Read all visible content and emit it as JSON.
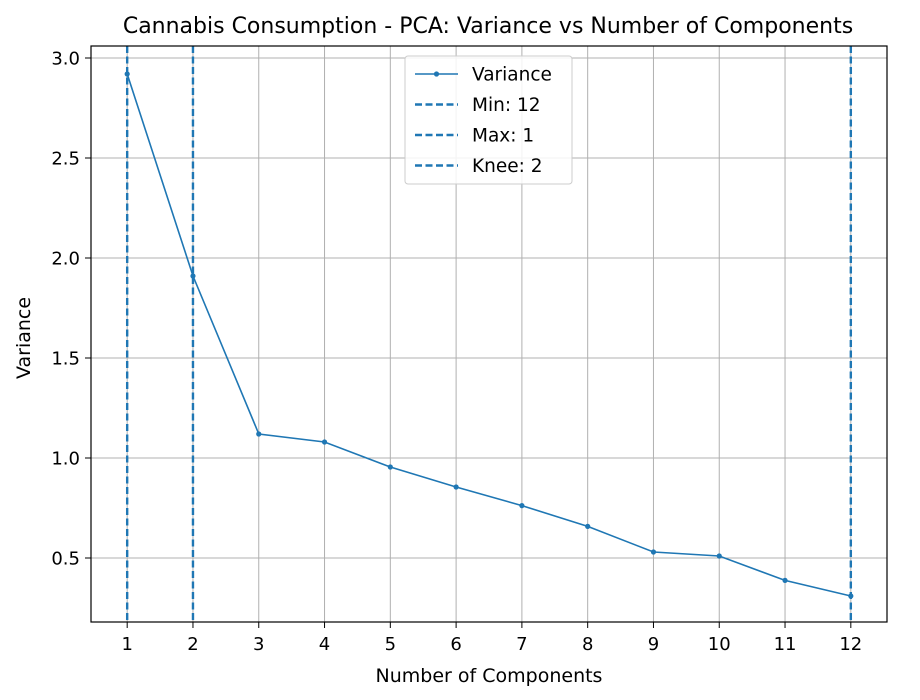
{
  "chart_data": {
    "type": "line",
    "title": "Cannabis Consumption - PCA: Variance vs Number of Components",
    "xlabel": "Number of Components",
    "ylabel": "Variance",
    "x": [
      1,
      2,
      3,
      4,
      5,
      6,
      7,
      8,
      9,
      10,
      11,
      12
    ],
    "xticks": [
      "1",
      "2",
      "3",
      "4",
      "5",
      "6",
      "7",
      "8",
      "9",
      "10",
      "11",
      "12"
    ],
    "xlim": [
      0.45,
      12.55
    ],
    "ylim": [
      0.18,
      3.06
    ],
    "yticks": [
      "0.5",
      "1.0",
      "1.5",
      "2.0",
      "2.5",
      "3.0"
    ],
    "ytick_values": [
      0.5,
      1.0,
      1.5,
      2.0,
      2.5,
      3.0
    ],
    "series": [
      {
        "name": "Variance",
        "values": [
          2.92,
          1.91,
          1.12,
          1.08,
          0.955,
          0.855,
          0.762,
          0.658,
          0.53,
          0.51,
          0.388,
          0.31
        ],
        "color": "#1f77b4",
        "marker": "dot"
      }
    ],
    "vlines": [
      {
        "label": "Min: 12",
        "x": 12,
        "color": "#1f77b4",
        "style": "dashed"
      },
      {
        "label": "Max: 1",
        "x": 1,
        "color": "#1f77b4",
        "style": "dashed"
      },
      {
        "label": "Knee: 2",
        "x": 2,
        "color": "#1f77b4",
        "style": "dashed"
      }
    ],
    "grid": true,
    "legend_position": "top-center"
  }
}
